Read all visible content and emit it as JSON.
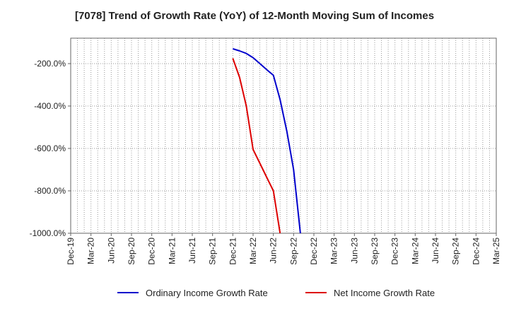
{
  "chart_data": {
    "type": "line",
    "title": "[7078]  Trend of Growth Rate (YoY) of 12-Month Moving Sum of Incomes",
    "xlabel": "",
    "ylabel": "",
    "x_ticks": [
      "Dec-19",
      "Mar-20",
      "Jun-20",
      "Sep-20",
      "Dec-20",
      "Mar-21",
      "Jun-21",
      "Sep-21",
      "Dec-21",
      "Mar-22",
      "Jun-22",
      "Sep-22",
      "Dec-22",
      "Mar-23",
      "Jun-23",
      "Sep-23",
      "Dec-23",
      "Mar-24",
      "Jun-24",
      "Sep-24",
      "Dec-24",
      "Mar-25"
    ],
    "y_ticks": [
      -200,
      -400,
      -600,
      -800,
      -1000
    ],
    "y_tick_labels": [
      "-200.0%",
      "-400.0%",
      "-600.0%",
      "-800.0%",
      "-1000.0%"
    ],
    "ylim": [
      -1000,
      -80
    ],
    "grid": true,
    "legend_position": "bottom",
    "series": [
      {
        "name": "Ordinary Income Growth Rate",
        "color": "#0000cc",
        "points": [
          {
            "x": "Dec-21",
            "y": -130
          },
          {
            "x": "Jan-22",
            "y": -140
          },
          {
            "x": "Feb-22",
            "y": -152
          },
          {
            "x": "Mar-22",
            "y": -172
          },
          {
            "x": "Apr-22",
            "y": -200
          },
          {
            "x": "May-22",
            "y": -228
          },
          {
            "x": "Jun-22",
            "y": -255
          },
          {
            "x": "Jul-22",
            "y": -370
          },
          {
            "x": "Aug-22",
            "y": -520
          },
          {
            "x": "Sep-22",
            "y": -700
          },
          {
            "x": "Oct-22",
            "y": -1000
          }
        ]
      },
      {
        "name": "Net Income Growth Rate",
        "color": "#dd0000",
        "points": [
          {
            "x": "Dec-21",
            "y": -175
          },
          {
            "x": "Jan-22",
            "y": -265
          },
          {
            "x": "Feb-22",
            "y": -400
          },
          {
            "x": "Mar-22",
            "y": -605
          },
          {
            "x": "Apr-22",
            "y": -670
          },
          {
            "x": "May-22",
            "y": -735
          },
          {
            "x": "Jun-22",
            "y": -800
          },
          {
            "x": "Jul-22",
            "y": -1000
          }
        ]
      }
    ]
  }
}
